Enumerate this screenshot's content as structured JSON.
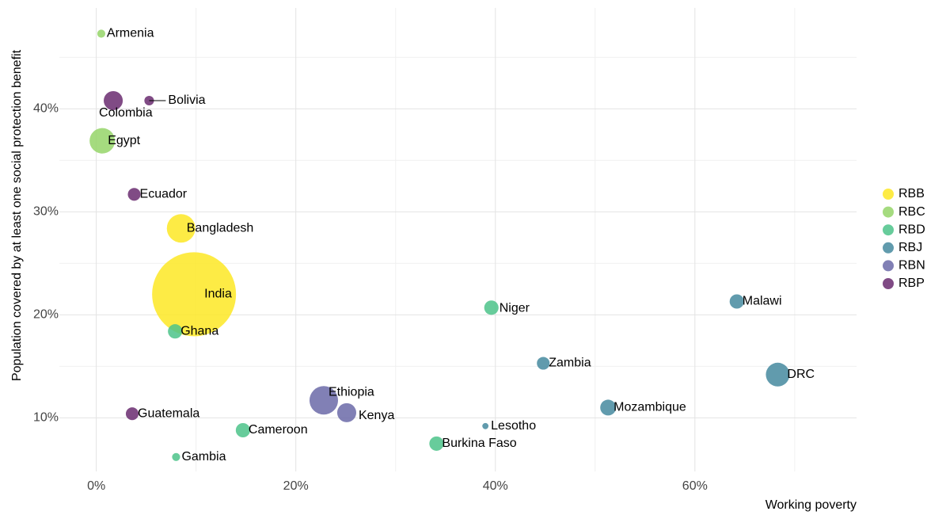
{
  "chart_data": {
    "type": "scatter",
    "x_label": "Working poverty",
    "y_label": "Population covered by at least one social protection benefit",
    "xlim": [
      -3.7,
      76.2
    ],
    "ylim": [
      4.8,
      49.8
    ],
    "xticks": [
      {
        "value": 0,
        "label": "0%"
      },
      {
        "value": 20,
        "label": "20%"
      },
      {
        "value": 40,
        "label": "40%"
      },
      {
        "value": 60,
        "label": "60%"
      }
    ],
    "yticks": [
      {
        "value": 10,
        "label": "10%"
      },
      {
        "value": 20,
        "label": "20%"
      },
      {
        "value": 30,
        "label": "30%"
      },
      {
        "value": 40,
        "label": "40%"
      }
    ],
    "x_minor": [
      10,
      30,
      50,
      70
    ],
    "y_minor": [
      15,
      25,
      35,
      45
    ],
    "grid": true,
    "legend": "right",
    "series": [
      {
        "name": "RBB",
        "color": "#fde725",
        "points": [
          "Bangladesh",
          "India"
        ],
        "x": [
          8.5,
          9.8
        ],
        "values": [
          28.4,
          22.0
        ],
        "sizes": [
          150,
          1300
        ]
      },
      {
        "name": "RBC",
        "color": "#95d568",
        "points": [
          "Armenia",
          "Egypt"
        ],
        "x": [
          0.5,
          0.6
        ],
        "values": [
          47.3,
          36.9
        ],
        "sizes": [
          12,
          119
        ]
      },
      {
        "name": "RBD",
        "color": "#4cc38a",
        "points": [
          "Ghana",
          "Gambia",
          "Cameroon",
          "Burkina Faso",
          "Niger"
        ],
        "x": [
          7.9,
          8.0,
          14.7,
          34.1,
          39.6
        ],
        "values": [
          18.4,
          6.2,
          8.8,
          7.5,
          20.7
        ],
        "sizes": [
          38,
          12,
          38,
          38,
          38
        ]
      },
      {
        "name": "RBJ",
        "color": "#45899f",
        "points": [
          "Lesotho",
          "Zambia",
          "Mozambique",
          "Malawi",
          "DRC"
        ],
        "x": [
          39.0,
          44.8,
          51.3,
          64.2,
          68.3
        ],
        "values": [
          9.2,
          15.3,
          11.0,
          21.3,
          14.2
        ],
        "sizes": [
          7,
          30,
          46,
          38,
          104
        ]
      },
      {
        "name": "RBN",
        "color": "#6b6aa8",
        "points": [
          "Ethiopia",
          "Kenya"
        ],
        "x": [
          22.8,
          25.1
        ],
        "values": [
          11.7,
          10.5
        ],
        "sizes": [
          150,
          67
        ]
      },
      {
        "name": "RBP",
        "color": "#6a2c70",
        "points": [
          "Colombia",
          "Bolivia",
          "Ecuador",
          "Guatemala"
        ],
        "x": [
          1.7,
          5.3,
          3.8,
          3.6
        ],
        "values": [
          40.8,
          40.8,
          31.7,
          10.4
        ],
        "sizes": [
          67,
          17,
          30,
          30
        ]
      }
    ]
  }
}
